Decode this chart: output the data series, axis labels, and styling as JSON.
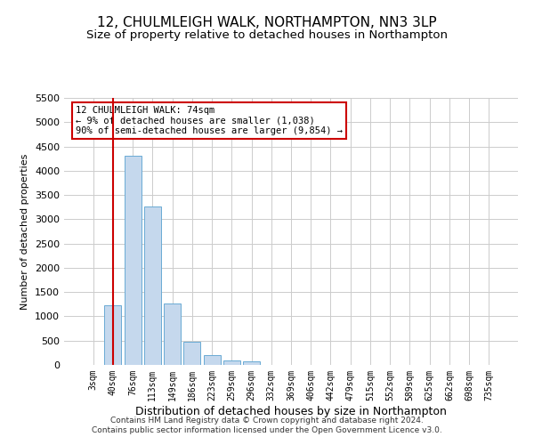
{
  "title": "12, CHULMLEIGH WALK, NORTHAMPTON, NN3 3LP",
  "subtitle": "Size of property relative to detached houses in Northampton",
  "xlabel": "Distribution of detached houses by size in Northampton",
  "ylabel": "Number of detached properties",
  "footer_line1": "Contains HM Land Registry data © Crown copyright and database right 2024.",
  "footer_line2": "Contains public sector information licensed under the Open Government Licence v3.0.",
  "annotation_title": "12 CHULMLEIGH WALK: 74sqm",
  "annotation_line1": "← 9% of detached houses are smaller (1,038)",
  "annotation_line2": "90% of semi-detached houses are larger (9,854) →",
  "bar_color": "#c5d8ed",
  "bar_edge_color": "#6aaad4",
  "vline_color": "#cc0000",
  "vline_x_index": 1,
  "categories": [
    "3sqm",
    "40sqm",
    "76sqm",
    "113sqm",
    "149sqm",
    "186sqm",
    "223sqm",
    "259sqm",
    "296sqm",
    "332sqm",
    "369sqm",
    "406sqm",
    "442sqm",
    "479sqm",
    "515sqm",
    "552sqm",
    "589sqm",
    "625sqm",
    "662sqm",
    "698sqm",
    "735sqm"
  ],
  "values": [
    0,
    1230,
    4300,
    3260,
    1260,
    480,
    200,
    100,
    75,
    0,
    0,
    0,
    0,
    0,
    0,
    0,
    0,
    0,
    0,
    0,
    0
  ],
  "ylim": [
    0,
    5500
  ],
  "yticks": [
    0,
    500,
    1000,
    1500,
    2000,
    2500,
    3000,
    3500,
    4000,
    4500,
    5000,
    5500
  ],
  "background_color": "#ffffff",
  "grid_color": "#cccccc",
  "title_fontsize": 11,
  "subtitle_fontsize": 9.5,
  "annotation_box_color": "#ffffff",
  "annotation_box_edge": "#cc0000",
  "ylabel_fontsize": 8,
  "xlabel_fontsize": 9,
  "tick_fontsize": 8,
  "xtick_fontsize": 7
}
